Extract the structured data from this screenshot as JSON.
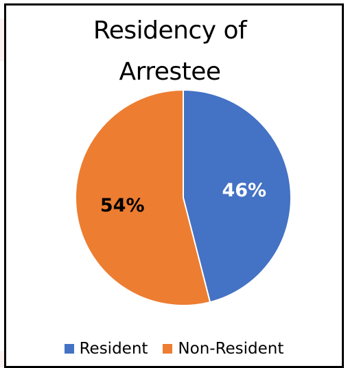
{
  "chart_data": {
    "type": "pie",
    "title_lines": [
      "Residency of",
      "Arrestee"
    ],
    "slices": [
      {
        "label": "Resident",
        "value": 46,
        "display": "46%",
        "color": "#4472C4",
        "label_color": "#FFFFFF"
      },
      {
        "label": "Non-Resident",
        "value": 54,
        "display": "54%",
        "color": "#ED7D31",
        "label_color": "#000000"
      }
    ],
    "legend_position": "bottom"
  }
}
